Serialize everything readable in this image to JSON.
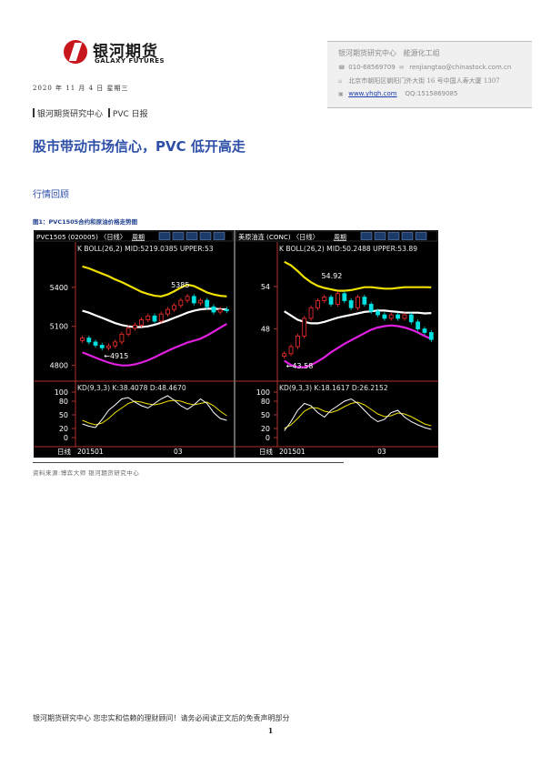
{
  "logo": {
    "name_cn": "银河期货",
    "name_en": "GALAXY FUTURES"
  },
  "date": "2020 年 11 月 4 日  星期三",
  "contact": {
    "org": "银河期货研究中心",
    "team": "能源化工组",
    "phone": "010-68569709",
    "email": "renjiangtao@chinastock.com.cn",
    "address": "北京市朝阳区朝阳门外大街 16 号中国人寿大厦 1307",
    "website": "www.yhqh.com",
    "qq": "QQ:1515869085"
  },
  "breadcrumb": {
    "part1": "银河期货研究中心",
    "part2": "PVC 日报"
  },
  "title": "股市带动市场信心，PVC 低开高走",
  "section_heading": "行情回顾",
  "figure_caption": "图1：PVC1505合约和原油价格走势图",
  "chart_data": [
    {
      "type": "candlestick",
      "header": "PVC1505 (020005) 〈日线〉",
      "week_label": "周期",
      "indicator_label": "K  BOLL(26,2) MID:5219.0385  UPPER:53",
      "boll_mid": 5219.0385,
      "y_ticks": [
        4800,
        5100,
        5400
      ],
      "ylim": [
        4700,
        5650
      ],
      "price_annotations": [
        {
          "label": "5385",
          "value": 5385
        },
        {
          "label": "4915",
          "value": 4915
        }
      ],
      "x_labels": [
        "日线",
        "201501",
        "03"
      ],
      "boll_upper": [
        5560,
        5545,
        5525,
        5505,
        5485,
        5460,
        5440,
        5415,
        5390,
        5365,
        5348,
        5335,
        5330,
        5345,
        5370,
        5398,
        5420,
        5410,
        5385,
        5360,
        5345,
        5335,
        5330
      ],
      "boll_mid_series": [
        5220,
        5205,
        5185,
        5165,
        5145,
        5125,
        5110,
        5100,
        5095,
        5095,
        5100,
        5112,
        5128,
        5145,
        5165,
        5185,
        5205,
        5220,
        5230,
        5235,
        5235,
        5232,
        5230
      ],
      "boll_lower": [
        4900,
        4880,
        4860,
        4840,
        4822,
        4808,
        4800,
        4800,
        4808,
        4822,
        4840,
        4862,
        4888,
        4912,
        4935,
        4955,
        4975,
        4990,
        5005,
        5030,
        5060,
        5090,
        5120
      ],
      "close": [
        5010,
        4980,
        4955,
        4935,
        4950,
        4980,
        5040,
        5085,
        5110,
        5150,
        5180,
        5140,
        5195,
        5230,
        5260,
        5300,
        5330,
        5280,
        5300,
        5250,
        5210,
        5230,
        5220
      ],
      "kd_header": "KD(9,3,3) K:38.4078 D:48.4670",
      "kd_values": {
        "K": 38.4078,
        "D": 48.467
      },
      "kd_ticks": [
        100,
        80,
        50,
        20,
        0
      ],
      "k": [
        30,
        25,
        22,
        40,
        60,
        72,
        85,
        88,
        78,
        70,
        65,
        75,
        85,
        92,
        82,
        70,
        62,
        72,
        85,
        75,
        55,
        42,
        38
      ],
      "d": [
        38,
        32,
        28,
        32,
        42,
        55,
        65,
        75,
        80,
        78,
        74,
        72,
        75,
        80,
        82,
        80,
        75,
        72,
        75,
        78,
        70,
        58,
        48
      ]
    },
    {
      "type": "candlestick",
      "header": "美原油连 (CONC) 〈日线〉",
      "week_label": "周期",
      "indicator_label": "K  BOLL(26,2) MID:50.2488  UPPER:53.89",
      "boll_mid": 50.2488,
      "y_ticks": [
        48,
        54
      ],
      "ylim": [
        41,
        58.5
      ],
      "price_annotations": [
        {
          "label": "54.92",
          "value": 54.92
        },
        {
          "label": "43.58",
          "value": 43.58
        }
      ],
      "x_labels": [
        "日线",
        "201501",
        "03"
      ],
      "boll_upper": [
        57.5,
        57,
        56.2,
        55.3,
        54.6,
        54.1,
        53.8,
        53.6,
        53.4,
        53.4,
        53.5,
        53.7,
        53.9,
        53.9,
        53.8,
        53.7,
        53.7,
        53.8,
        53.9,
        53.9,
        53.9,
        53.9,
        53.89
      ],
      "boll_mid_series": [
        50.5,
        49.9,
        49.3,
        49,
        48.8,
        48.8,
        49,
        49.3,
        49.6,
        49.8,
        50,
        50.2,
        50.4,
        50.5,
        50.6,
        50.6,
        50.5,
        50.4,
        50.3,
        50.3,
        50.3,
        50.2,
        50.25
      ],
      "boll_lower": [
        43.5,
        42.9,
        42.6,
        42.6,
        42.9,
        43.4,
        44,
        44.7,
        45.3,
        45.9,
        46.4,
        46.9,
        47.4,
        47.9,
        48.2,
        48.4,
        48.5,
        48.4,
        48.2,
        47.9,
        47.5,
        47,
        46.6
      ],
      "close": [
        44.5,
        45.5,
        47,
        49.5,
        51,
        52,
        52.5,
        51.5,
        53,
        52,
        51,
        52.5,
        51.5,
        50.5,
        50,
        49.5,
        50,
        49.5,
        50,
        49,
        48,
        47.5,
        46.5
      ],
      "kd_header": "KD(9,3,3) K:18.1617 D:26.2152",
      "kd_values": {
        "K": 18.1617,
        "D": 26.2152
      },
      "kd_ticks": [
        100,
        80,
        50,
        20,
        0
      ],
      "k": [
        15,
        35,
        60,
        75,
        70,
        55,
        45,
        60,
        70,
        80,
        85,
        75,
        60,
        45,
        35,
        40,
        55,
        60,
        45,
        35,
        28,
        22,
        18
      ],
      "d": [
        20,
        28,
        42,
        58,
        66,
        65,
        58,
        55,
        60,
        68,
        75,
        78,
        72,
        62,
        52,
        46,
        48,
        54,
        52,
        46,
        38,
        30,
        26
      ]
    }
  ],
  "source": "资料来源:博弈大师  银河期货研究中心",
  "footer": "银河期货研究中心  您忠实和信赖的理财顾问！请务必阅读正文后的免责声明部分",
  "page_number": "1"
}
